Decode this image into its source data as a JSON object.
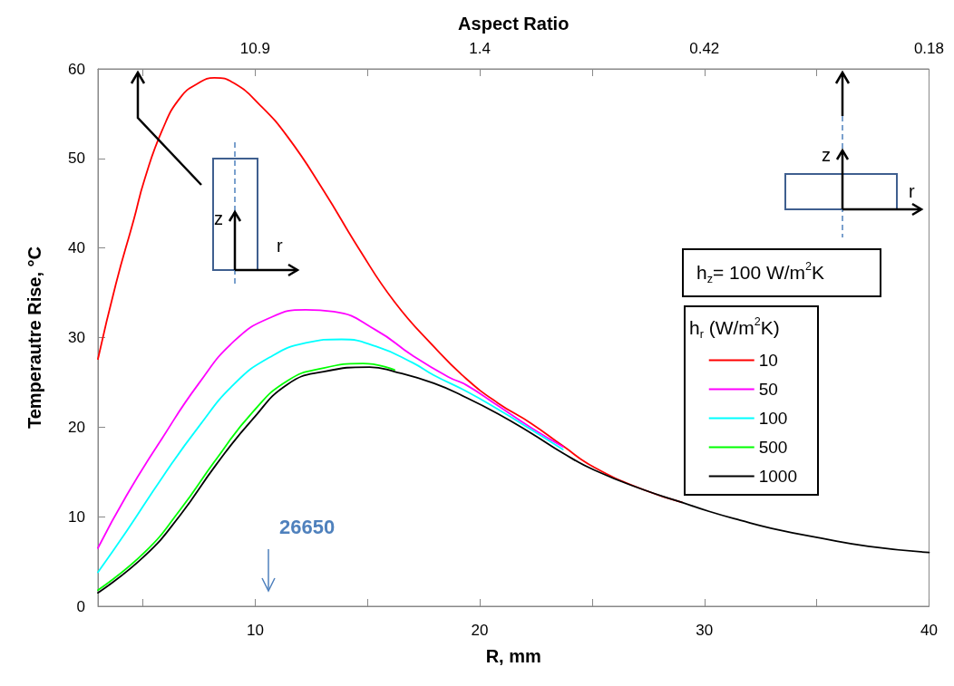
{
  "chart_data": {
    "type": "line",
    "xlabel": "R, mm",
    "ylabel": "Temperautre Rise, °C",
    "x2label": "Aspect Ratio",
    "legend_title": "h$_{r}$ (W/m$^{2}$K)",
    "xlim": [
      3,
      40
    ],
    "xticks": [
      {
        "value": 5,
        "label": null
      },
      10,
      {
        "value": 15,
        "label": null
      },
      20,
      {
        "value": 25,
        "label": null
      },
      30,
      {
        "value": 35,
        "label": null
      },
      40
    ],
    "ylim": [
      0,
      60
    ],
    "yticks": [
      0,
      10,
      20,
      30,
      40,
      50,
      60
    ],
    "grid": false,
    "legend": "right",
    "marker": "none",
    "line_style": "solid",
    "annotations": [
      "h$_{z}$= 100 W/m$^{2}$K",
      "26650",
      "z",
      "r",
      "z",
      "r",
      "10.9",
      "1.4",
      "0.42",
      "0.18"
    ],
    "series": [
      {
        "name": "10",
        "color": "#ff0000",
        "x": [
          3,
          3.8,
          4.6,
          5.07,
          5.87,
          6.67,
          7.47,
          8.18,
          9.06,
          10.2,
          11.45,
          13.05,
          14.6,
          16.2,
          17.95,
          19.4,
          20.8,
          22.3,
          23.7,
          25.1,
          27.3,
          29
        ],
        "values": [
          27.6,
          36,
          43.2,
          47.6,
          53.2,
          56.8,
          58.4,
          59,
          58.4,
          56,
          52.4,
          46.4,
          40,
          34,
          29,
          25.4,
          22.7,
          20.4,
          17.9,
          15.5,
          13,
          11.6
        ]
      },
      {
        "name": "50",
        "color": "#ff00ff",
        "x": [
          3,
          4.28,
          5.87,
          7.47,
          9.06,
          10.65,
          12.25,
          13.5,
          15.4,
          17,
          18.6,
          19.4,
          20.8,
          22.3,
          23.7
        ],
        "values": [
          6.5,
          12.4,
          18.8,
          24.8,
          29.6,
          32.2,
          33.1,
          32.9,
          30.8,
          28,
          25.6,
          24.7,
          22.4,
          19.9,
          17.8
        ]
      },
      {
        "name": "100",
        "color": "#00ffff",
        "x": [
          3,
          4.28,
          5.87,
          7.47,
          9.06,
          10.65,
          12.25,
          13.85,
          15.4,
          17,
          17.95,
          19.4,
          20.8,
          22.3,
          23.7
        ],
        "values": [
          3.8,
          8.4,
          14.4,
          20,
          24.8,
          27.8,
          29.4,
          29.8,
          29,
          27.2,
          25.8,
          24,
          22,
          19.7,
          17.5
        ]
      },
      {
        "name": "500",
        "color": "#00ff00",
        "x": [
          3,
          5.07,
          6.67,
          8.26,
          9.86,
          11.45,
          13.05,
          14.8,
          16.2
        ],
        "values": [
          1.8,
          6,
          10.8,
          16.4,
          21.6,
          25.2,
          26.6,
          27.1,
          26.4
        ]
      },
      {
        "name": "1000",
        "color": "#000000",
        "x": [
          3,
          5.07,
          6.67,
          8.26,
          9.86,
          11.45,
          13.05,
          15.1,
          16.2,
          17.95,
          19.4,
          20.8,
          22.3,
          23.7,
          25.1,
          27.3,
          29,
          30.2,
          31.6,
          33,
          35.2,
          37.3,
          40
        ],
        "values": [
          1.5,
          5.6,
          10.2,
          15.8,
          20.8,
          24.8,
          26.2,
          26.7,
          26.2,
          24.9,
          23.3,
          21.5,
          19.3,
          17.1,
          15.2,
          13,
          11.6,
          10.6,
          9.6,
          8.7,
          7.6,
          6.7,
          6
        ]
      }
    ]
  }
}
